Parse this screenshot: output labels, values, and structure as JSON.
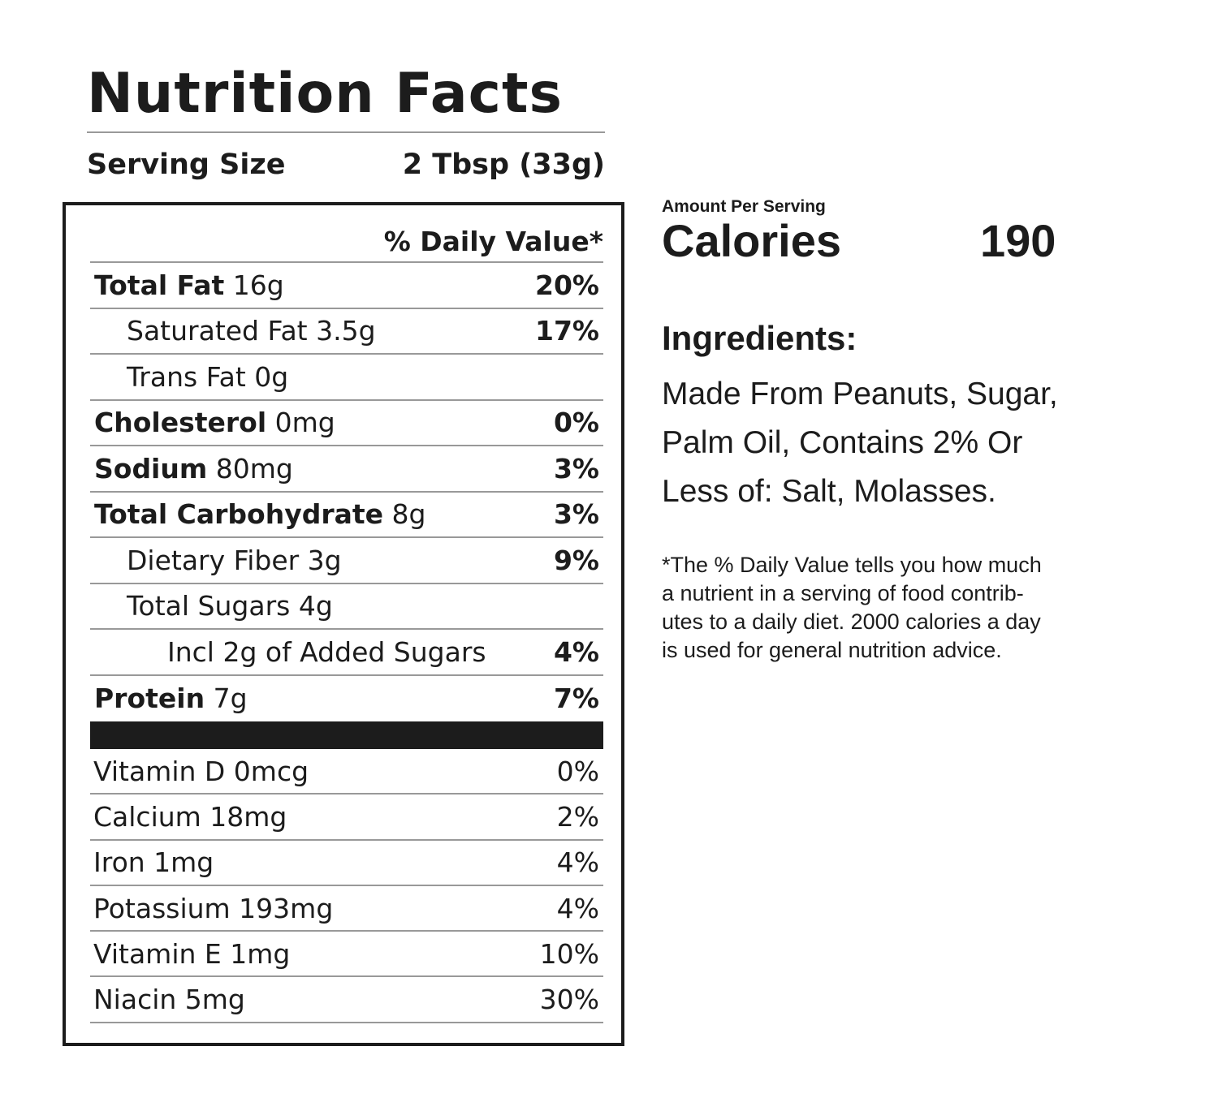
{
  "header": {
    "title": "Nutrition Facts",
    "serving_label": "Serving Size",
    "serving_value": "2 Tbsp (33g)"
  },
  "table": {
    "dv_header": "% Daily Value*",
    "rows": [
      {
        "name": "Total Fat",
        "amount": "16g",
        "pct": "20%"
      },
      {
        "name": "Saturated Fat 3.5g",
        "pct": "17%"
      },
      {
        "name": "Trans Fat 0g",
        "pct": ""
      },
      {
        "name": "Cholesterol",
        "amount": "0mg",
        "pct": "0%"
      },
      {
        "name": "Sodium",
        "amount": "80mg",
        "pct": "3%"
      },
      {
        "name": "Total Carbohydrate",
        "amount": "8g",
        "pct": "3%"
      },
      {
        "name": "Dietary Fiber 3g",
        "pct": "9%"
      },
      {
        "name": "Total Sugars 4g",
        "pct": ""
      },
      {
        "name": "Incl 2g of Added Sugars",
        "pct": "4%"
      },
      {
        "name": "Protein",
        "amount": "7g",
        "pct": "7%"
      }
    ],
    "vitamins": [
      {
        "name": "Vitamin D 0mcg",
        "pct": "0%"
      },
      {
        "name": "Calcium 18mg",
        "pct": "2%"
      },
      {
        "name": "Iron 1mg",
        "pct": "4%"
      },
      {
        "name": "Potassium 193mg",
        "pct": "4%"
      },
      {
        "name": "Vitamin E 1mg",
        "pct": "10%"
      },
      {
        "name": "Niacin 5mg",
        "pct": "30%"
      }
    ]
  },
  "calories": {
    "amount_per_serving": "Amount Per Serving",
    "label": "Calories",
    "value": "190"
  },
  "ingredients": {
    "heading": "Ingredients:",
    "lines": [
      "Made From Peanuts, Sugar,",
      "Palm Oil, Contains 2% Or",
      "Less of: Salt, Molasses."
    ]
  },
  "footnote": {
    "lines": [
      "*The % Daily Value tells you how much",
      "a nutrient in a serving of food contrib-",
      "utes to a daily diet. 2000 calories a day",
      "is used for general nutrition advice."
    ]
  }
}
